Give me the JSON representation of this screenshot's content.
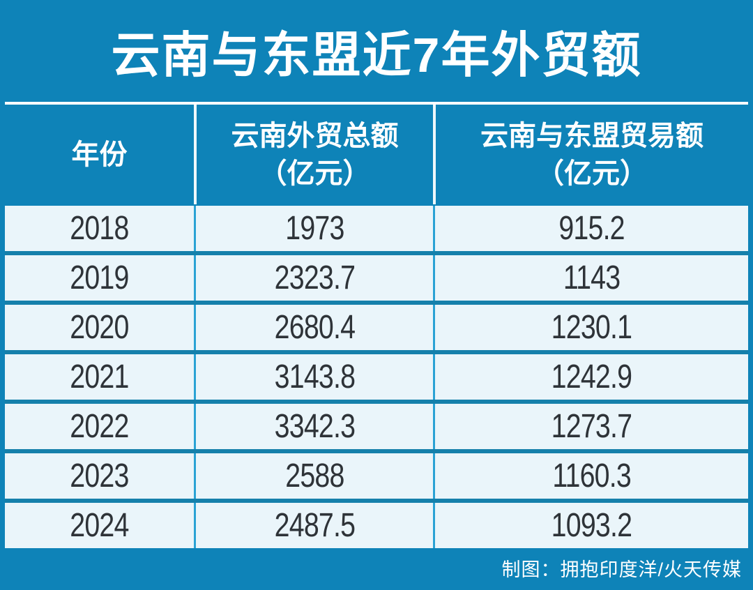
{
  "title": "云南与东盟近7年外贸额",
  "header": {
    "col_year": "年份",
    "col_total": "云南外贸总额\n（亿元）",
    "col_asean": "云南与东盟贸易额\n（亿元）"
  },
  "table": {
    "rows": [
      [
        "2018",
        "1973",
        "915.2"
      ],
      [
        "2019",
        "2323.7",
        "1143"
      ],
      [
        "2020",
        "2680.4",
        "1230.1"
      ],
      [
        "2021",
        "3143.8",
        "1242.9"
      ],
      [
        "2022",
        "3342.3",
        "1273.7"
      ],
      [
        "2023",
        "2588",
        "1160.3"
      ],
      [
        "2024",
        "2487.5",
        "1093.2"
      ]
    ]
  },
  "footer": {
    "credit": "制图：拥抱印度洋/火天传媒"
  },
  "colors": {
    "background_blue": "#0e83b8",
    "cell_background": "#eaf5fa",
    "horizontal_separator": "#1580ab",
    "vertical_separator": "#2aa2d4",
    "header_divider_white": "#ffffff",
    "data_text": "#2e3338",
    "header_text": "#ffffff"
  },
  "chart_data": {
    "type": "table",
    "title": "云南与东盟近7年外贸额",
    "columns": [
      "年份",
      "云南外贸总额（亿元）",
      "云南与东盟贸易额（亿元）"
    ],
    "rows": [
      [
        "2018",
        1973,
        915.2
      ],
      [
        "2019",
        2323.7,
        1143
      ],
      [
        "2020",
        2680.4,
        1230.1
      ],
      [
        "2021",
        3143.8,
        1242.9
      ],
      [
        "2022",
        3342.3,
        1273.7
      ],
      [
        "2023",
        2588,
        1160.3
      ],
      [
        "2024",
        2487.5,
        1093.2
      ]
    ],
    "series": [
      {
        "name": "云南外贸总额（亿元）",
        "values": [
          1973,
          2323.7,
          2680.4,
          3143.8,
          3342.3,
          2588,
          2487.5
        ]
      },
      {
        "name": "云南与东盟贸易额（亿元）",
        "values": [
          915.2,
          1143,
          1230.1,
          1242.9,
          1273.7,
          1160.3,
          1093.2
        ]
      }
    ],
    "x": [
      "2018",
      "2019",
      "2020",
      "2021",
      "2022",
      "2023",
      "2024"
    ],
    "source_credit": "制图：拥抱印度洋/火天传媒"
  }
}
